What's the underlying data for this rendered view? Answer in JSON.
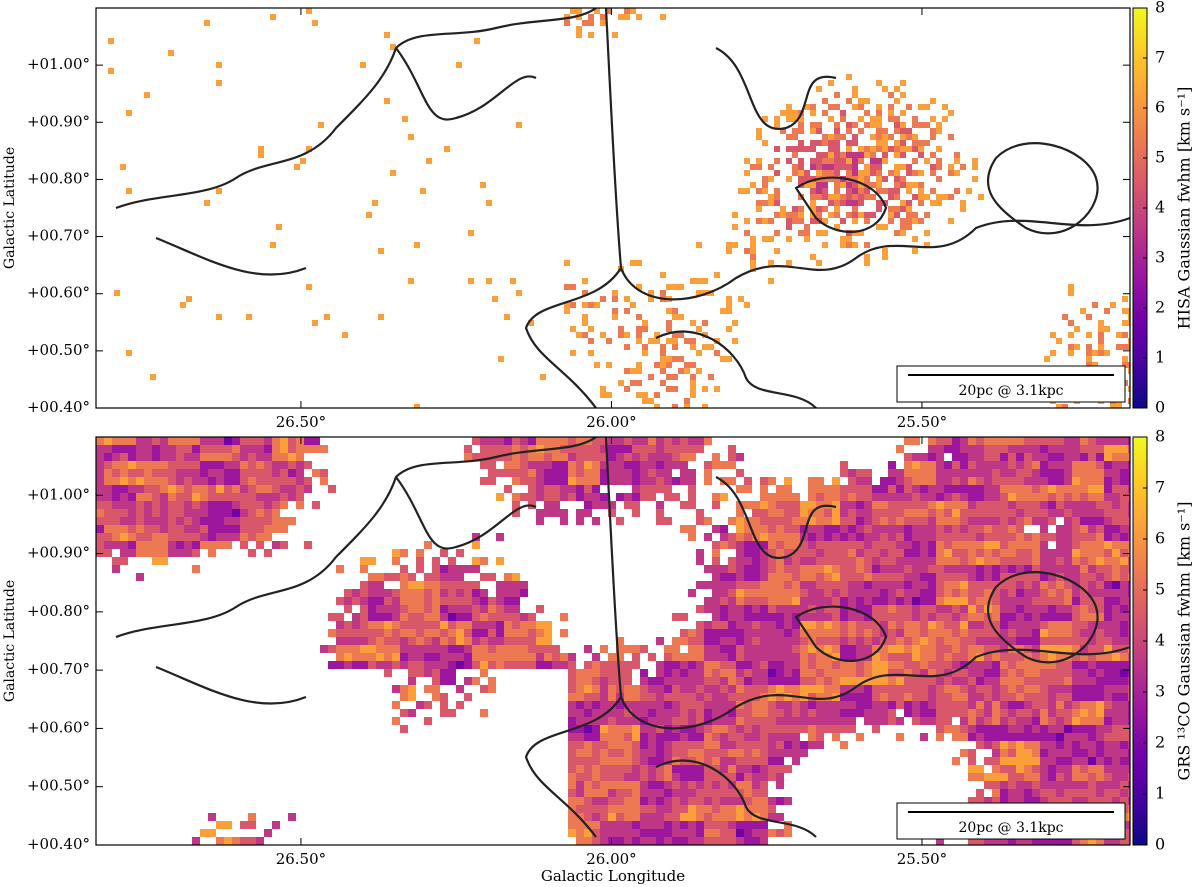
{
  "chart_data": [
    {
      "type": "heatmap",
      "ylabel": "Galactic Latitude",
      "colorbar_label": "HISA Gaussian fwhm [km s⁻¹]",
      "xlim": [
        26.83,
        25.165
      ],
      "ylim": [
        0.4,
        1.1
      ],
      "xticks": [
        {
          "value": 26.5,
          "label": "26.50°"
        },
        {
          "value": 26.0,
          "label": "26.00°"
        },
        {
          "value": 25.5,
          "label": "25.50°"
        }
      ],
      "yticks": [
        {
          "value": 0.4,
          "label": "+00.40°"
        },
        {
          "value": 0.5,
          "label": "+00.50°"
        },
        {
          "value": 0.6,
          "label": "+00.60°"
        },
        {
          "value": 0.7,
          "label": "+00.70°"
        },
        {
          "value": 0.8,
          "label": "+00.80°"
        },
        {
          "value": 0.9,
          "label": "+00.90°"
        },
        {
          "value": 1.0,
          "label": "+01.00°"
        }
      ],
      "clim": [
        0,
        8
      ],
      "cticks": [
        0,
        1,
        2,
        3,
        4,
        5,
        6,
        7,
        8
      ],
      "colormap": [
        "#0d0887",
        "#46039f",
        "#7201a8",
        "#9c179e",
        "#bd3786",
        "#d8576b",
        "#ed7953",
        "#fb9f3a",
        "#fdca26",
        "#f0f921"
      ],
      "scalebar": "20pc @ 3.1kpc"
    },
    {
      "type": "heatmap",
      "xlabel": "Galactic Longitude",
      "ylabel": "Galactic Latitude",
      "colorbar_label": "GRS ¹³CO Gaussian fwhm [km s⁻¹]",
      "xlim": [
        26.83,
        25.165
      ],
      "ylim": [
        0.4,
        1.1
      ],
      "xticks": [
        {
          "value": 26.5,
          "label": "26.50°"
        },
        {
          "value": 26.0,
          "label": "26.00°"
        },
        {
          "value": 25.5,
          "label": "25.50°"
        }
      ],
      "yticks": [
        {
          "value": 0.4,
          "label": "+00.40°"
        },
        {
          "value": 0.5,
          "label": "+00.50°"
        },
        {
          "value": 0.6,
          "label": "+00.60°"
        },
        {
          "value": 0.7,
          "label": "+00.70°"
        },
        {
          "value": 0.8,
          "label": "+00.80°"
        },
        {
          "value": 0.9,
          "label": "+00.90°"
        },
        {
          "value": 1.0,
          "label": "+01.00°"
        }
      ],
      "clim": [
        0,
        8
      ],
      "cticks": [
        0,
        1,
        2,
        3,
        4,
        5,
        6,
        7,
        8
      ],
      "colormap": [
        "#0d0887",
        "#46039f",
        "#7201a8",
        "#9c179e",
        "#bd3786",
        "#d8576b",
        "#ed7953",
        "#fb9f3a",
        "#fdca26",
        "#f0f921"
      ],
      "scalebar": "20pc @ 3.1kpc"
    }
  ]
}
